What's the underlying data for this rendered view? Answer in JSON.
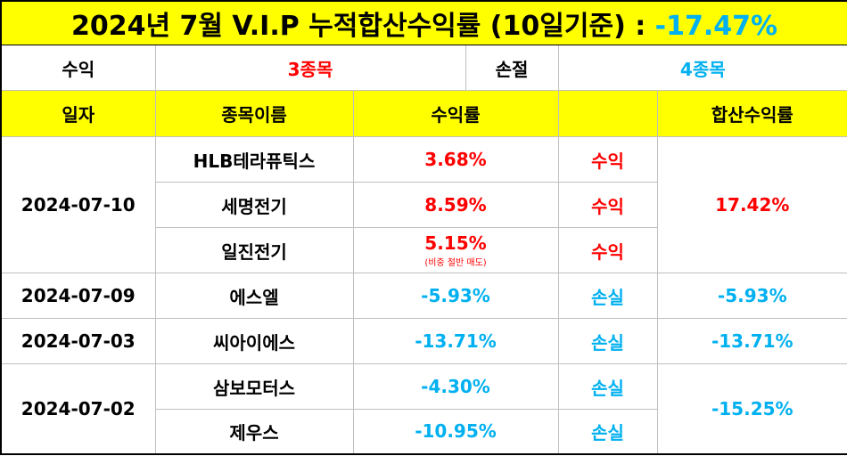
{
  "title": {
    "text": "2024년 7월 V.I.P 누적합산수익률 (10일기준) : ",
    "value": "-17.47%"
  },
  "summary": {
    "profit_label": "수익",
    "profit_count": "3종목",
    "loss_label": "손절",
    "loss_count": "4종목"
  },
  "headers": {
    "date": "일자",
    "name": "종목이름",
    "rate": "수익률",
    "status": "",
    "total": "합산수익률"
  },
  "groups": [
    {
      "date": "2024-07-10",
      "total": "17.42%",
      "rows": [
        {
          "name": "HLB테라퓨틱스",
          "rate": "3.68%",
          "status": "수익"
        },
        {
          "name": "세명전기",
          "rate": "8.59%",
          "status": "수익"
        },
        {
          "name": "일진전기",
          "rate": "5.15%",
          "note": "(비중 절반 매도)",
          "status": "수익"
        }
      ]
    },
    {
      "date": "2024-07-09",
      "total": "-5.93%",
      "rows": [
        {
          "name": "에스엘",
          "rate": "-5.93%",
          "status": "손실"
        }
      ]
    },
    {
      "date": "2024-07-03",
      "total": "-13.71%",
      "rows": [
        {
          "name": "씨아이에스",
          "rate": "-13.71%",
          "status": "손실"
        }
      ]
    },
    {
      "date": "2024-07-02",
      "total": "-15.25%",
      "rows": [
        {
          "name": "삼보모터스",
          "rate": "-4.30%",
          "status": "손실"
        },
        {
          "name": "제우스",
          "rate": "-10.95%",
          "status": "손실"
        }
      ]
    }
  ],
  "colors": {
    "header_bg": "#ffff00",
    "profit": "#ff0000",
    "loss": "#00b0f0"
  }
}
